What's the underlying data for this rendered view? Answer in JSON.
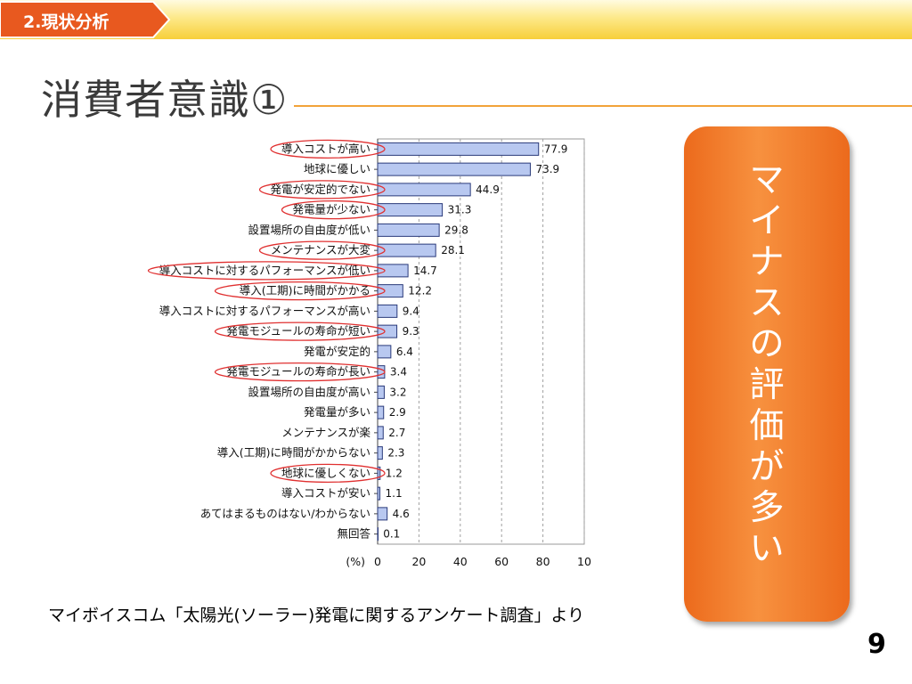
{
  "header": {
    "section_label": "2.現状分析"
  },
  "slide": {
    "title": "消費者意識①",
    "callout_text": "マイナスの評価が多い",
    "source": "マイボイスコム「太陽光(ソーラー)発電に関するアンケート調査」より",
    "page_number": "9"
  },
  "colors": {
    "bar_fill": "#b8c8f0",
    "bar_stroke": "#2a3a7a",
    "highlight_ellipse": "#e03030",
    "callout": "#f07a2a",
    "accent_rule": "#f2a33a"
  },
  "chart_data": {
    "type": "bar",
    "orientation": "horizontal",
    "categories": [
      "導入コストが高い",
      "地球に優しい",
      "発電が安定的でない",
      "発電量が少ない",
      "設置場所の自由度が低い",
      "メンテナンスが大変",
      "導入コストに対するパフォーマンスが低い",
      "導入(工期)に時間がかかる",
      "導入コストに対するパフォーマンスが高い",
      "発電モジュールの寿命が短い",
      "発電が安定的",
      "発電モジュールの寿命が長い",
      "設置場所の自由度が高い",
      "発電量が多い",
      "メンテナンスが楽",
      "導入(工期)に時間がかからない",
      "地球に優しくない",
      "導入コストが安い",
      "あてはまるものはない/わからない",
      "無回答"
    ],
    "values": [
      77.9,
      73.9,
      44.9,
      31.3,
      29.8,
      28.1,
      14.7,
      12.2,
      9.4,
      9.3,
      6.4,
      3.4,
      3.2,
      2.9,
      2.7,
      2.3,
      1.2,
      1.1,
      4.6,
      0.1
    ],
    "value_labels": [
      "77.9",
      "73.9",
      "44.9",
      "31.3",
      "29.8",
      "28.1",
      "14.7",
      "12.2",
      "9.4",
      "9.3",
      "6.4",
      "3.4",
      "3.2",
      "2.9",
      "2.7",
      "2.3",
      "1.2",
      "1.1",
      "4.6",
      "0.1"
    ],
    "highlighted": [
      true,
      false,
      true,
      true,
      false,
      true,
      true,
      true,
      false,
      true,
      false,
      true,
      false,
      false,
      false,
      false,
      true,
      false,
      false,
      false
    ],
    "xlim": [
      0,
      100
    ],
    "x_ticks": [
      "0",
      "20",
      "40",
      "60",
      "80",
      "10"
    ],
    "unit_label": "(%)",
    "grid": "vertical dashed"
  }
}
